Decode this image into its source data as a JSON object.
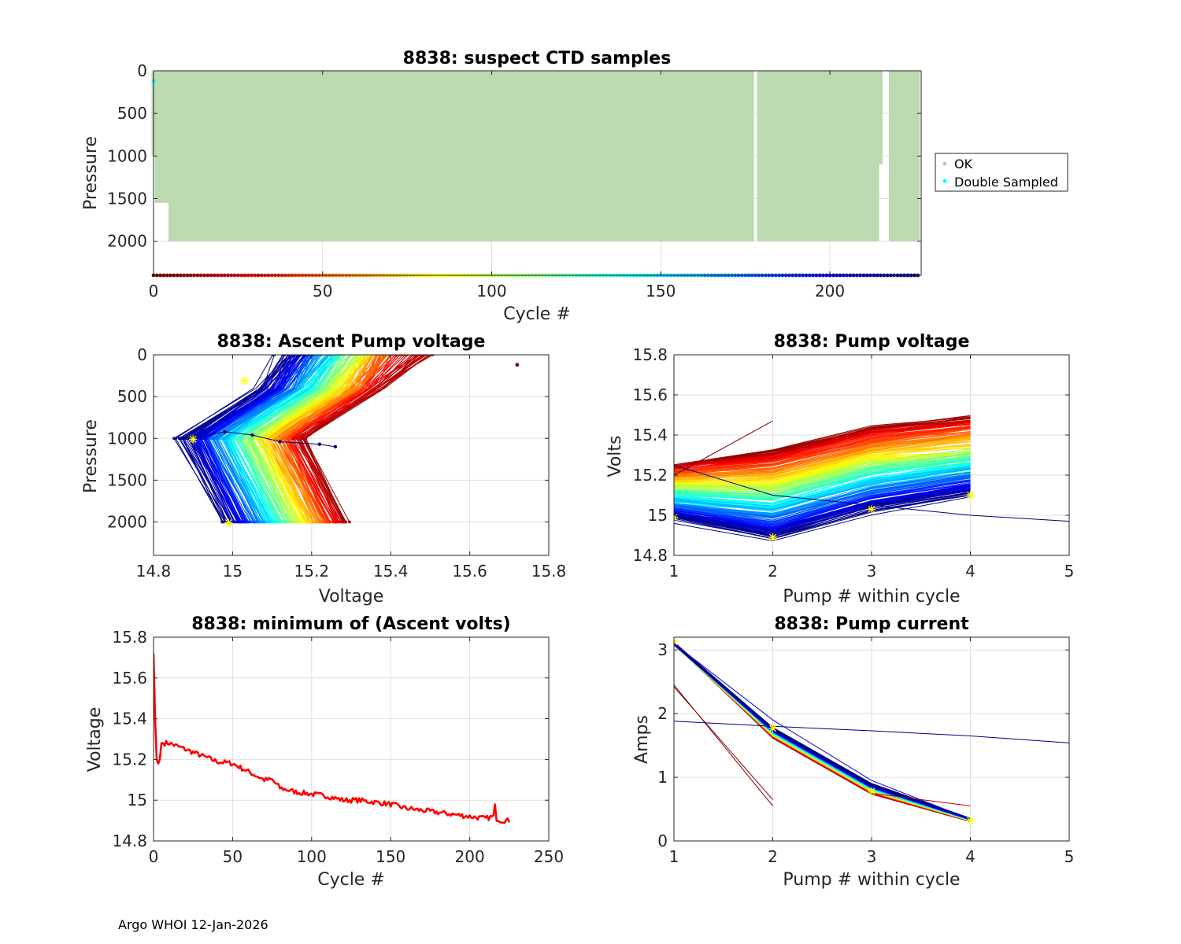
{
  "footer": "Argo WHOI 12-Jan-2026",
  "chart_data": [
    {
      "id": "suspect",
      "type": "scatter",
      "title": "8838: suspect CTD samples",
      "xlabel": "Cycle #",
      "ylabel": "Pressure",
      "xlim": [
        0,
        227
      ],
      "ylim": [
        2400,
        0
      ],
      "xticks": [
        "0",
        "50",
        "100",
        "150",
        "200"
      ],
      "yticks": [
        "0",
        "500",
        "1000",
        "1500",
        "2000"
      ],
      "legend": [
        "OK",
        "Double Sampled"
      ],
      "legend_position": "outside-right",
      "ok_color": "#bbdab0",
      "double_sampled_color": "#00ffff",
      "profile_max_depth": 2000,
      "early_cycles_max_depth": [
        1000,
        1550,
        1550,
        1550,
        1550
      ],
      "missing_cycles": [
        178,
        216,
        217
      ],
      "short_cycles": [
        {
          "cycle": 215,
          "max_depth": 1100
        }
      ],
      "double_sampled_points": [
        {
          "cycle": 0,
          "pressure": 120
        }
      ],
      "cycle_color_bar_pressure": 2400
    },
    {
      "id": "ascent",
      "type": "line",
      "title": "8838: Ascent Pump voltage",
      "xlabel": "Voltage",
      "ylabel": "Pressure",
      "xlim": [
        14.8,
        15.8
      ],
      "ylim": [
        2400,
        0
      ],
      "xticks": [
        "14.8",
        "15",
        "15.2",
        "15.4",
        "15.6",
        "15.8"
      ],
      "yticks": [
        "0",
        "500",
        "1000",
        "1500",
        "2000"
      ],
      "min_cycle": {
        "voltage": [
          15.26,
          15.22,
          15.12,
          15.05,
          14.98,
          14.9
        ],
        "pressure": [
          1100,
          1070,
          1040,
          960,
          920,
          1000
        ]
      },
      "outlier": {
        "voltage": 15.72,
        "pressure": 120
      }
    },
    {
      "id": "pumpvolt",
      "type": "line",
      "title": "8838: Pump voltage",
      "xlabel": "Pump # within cycle",
      "ylabel": "Volts",
      "xlim": [
        1,
        5
      ],
      "ylim": [
        14.8,
        15.8
      ],
      "xticks": [
        "1",
        "2",
        "3",
        "4",
        "5"
      ],
      "yticks": [
        "14.8",
        "15",
        "15.2",
        "15.4",
        "15.6",
        "15.8"
      ],
      "first_cycle": {
        "x": [
          1,
          2,
          3,
          4
        ],
        "y": [
          15.26,
          15.33,
          15.45,
          15.5
        ]
      },
      "last_cycle": {
        "x": [
          1,
          2,
          3,
          4
        ],
        "y": [
          14.98,
          14.88,
          15.02,
          15.1
        ]
      },
      "outlier_line": {
        "x": [
          1,
          2,
          3,
          4,
          5
        ],
        "y": [
          15.25,
          15.1,
          15.05,
          15.0,
          14.97
        ]
      }
    },
    {
      "id": "minvolt",
      "type": "line",
      "title": "8838: minimum of (Ascent volts)",
      "xlabel": "Cycle #",
      "ylabel": "Voltage",
      "xlim": [
        0,
        250
      ],
      "ylim": [
        14.8,
        15.8
      ],
      "xticks": [
        "0",
        "50",
        "100",
        "150",
        "200",
        "250"
      ],
      "yticks": [
        "14.8",
        "15",
        "15.2",
        "15.4",
        "15.6",
        "15.8"
      ],
      "series": [
        {
          "name": "minimum ascent volts",
          "color": "#ff0000",
          "x": [
            0,
            1,
            2,
            3,
            4,
            5,
            6,
            10,
            20,
            30,
            40,
            50,
            55,
            60,
            70,
            75,
            80,
            90,
            100,
            110,
            120,
            130,
            140,
            150,
            160,
            170,
            180,
            190,
            200,
            210,
            215,
            216,
            217,
            220,
            225
          ],
          "y": [
            15.72,
            15.4,
            15.2,
            15.18,
            15.2,
            15.28,
            15.28,
            15.28,
            15.25,
            15.22,
            15.19,
            15.18,
            15.16,
            15.14,
            15.1,
            15.1,
            15.06,
            15.04,
            15.03,
            15.02,
            15.0,
            15.0,
            14.99,
            14.98,
            14.96,
            14.95,
            14.94,
            14.93,
            14.92,
            14.91,
            14.92,
            14.97,
            14.91,
            14.9,
            14.9
          ]
        }
      ]
    },
    {
      "id": "pumpcurrent",
      "type": "line",
      "title": "8838: Pump current",
      "xlabel": "Pump # within cycle",
      "ylabel": "Amps",
      "xlim": [
        1,
        5
      ],
      "ylim": [
        0,
        3.2
      ],
      "xticks": [
        "1",
        "2",
        "3",
        "4",
        "5"
      ],
      "yticks": [
        "0",
        "1",
        "2",
        "3"
      ],
      "typical_profile": {
        "x": [
          1,
          2,
          3,
          4
        ],
        "y": [
          3.1,
          1.7,
          0.82,
          0.33
        ]
      },
      "early_short": {
        "x": [
          1,
          2
        ],
        "y": [
          2.45,
          0.55
        ]
      },
      "outlier_line": {
        "x": [
          1,
          2,
          3,
          4,
          5
        ],
        "y": [
          1.88,
          1.8,
          1.73,
          1.65,
          1.54
        ]
      },
      "outlier_steep": {
        "x": [
          1,
          2,
          3,
          4
        ],
        "y": [
          3.1,
          1.9,
          0.95,
          0.34
        ]
      }
    }
  ]
}
